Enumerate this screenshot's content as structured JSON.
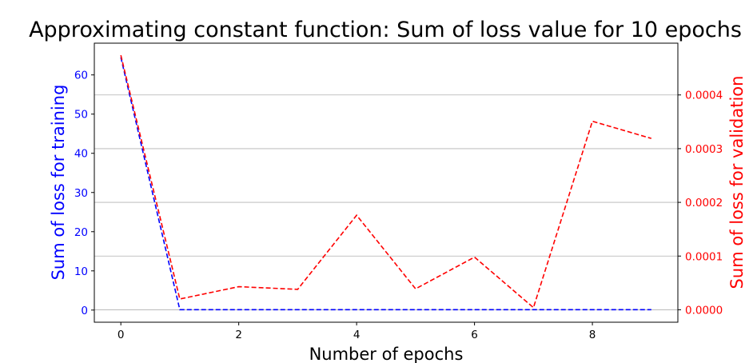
{
  "chart_data": {
    "type": "line",
    "title": "Approximating constant function: Sum of loss value for 10 epochs",
    "xlabel": "Number of epochs",
    "ylabel_left": "Sum of loss for training",
    "ylabel_right": "Sum of loss for validation",
    "x": [
      0,
      1,
      2,
      3,
      4,
      5,
      6,
      7,
      8,
      9
    ],
    "series": [
      {
        "axis": "left",
        "color": "#0000ff",
        "style": "dashed",
        "values": [
          64.5,
          0.1,
          0.1,
          0.1,
          0.1,
          0.1,
          0.1,
          0.1,
          0.1,
          0.1
        ]
      },
      {
        "axis": "right",
        "color": "#ff0000",
        "style": "dashed",
        "values": [
          0.000474,
          2e-05,
          4.3e-05,
          3.8e-05,
          0.000176,
          3.9e-05,
          9.8e-05,
          4e-06,
          0.000351,
          0.000319
        ]
      }
    ],
    "xlim": [
      -0.45,
      9.45
    ],
    "ylim_left": [
      -3.1,
      68.1
    ],
    "ylim_right": [
      -2.32e-05,
      0.0004964
    ],
    "xticks": [
      0,
      2,
      4,
      6,
      8
    ],
    "yticks_left": [
      0,
      10,
      20,
      30,
      40,
      50,
      60
    ],
    "yticks_right": [
      0.0,
      0.0001,
      0.0002,
      0.0003,
      0.0004
    ],
    "yticklabels_right": [
      "0.0000",
      "0.0001",
      "0.0002",
      "0.0003",
      "0.0004"
    ],
    "left_axis_color": "#0000ff",
    "right_axis_color": "#ff0000",
    "grid": "horizontal, right axis",
    "grid_color": "#b0b0b0"
  }
}
